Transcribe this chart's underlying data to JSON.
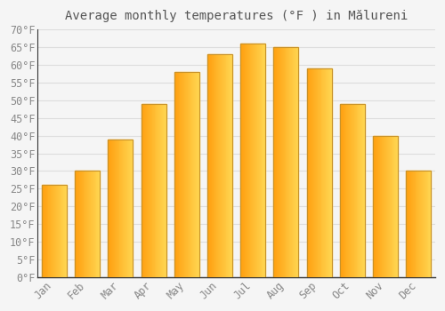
{
  "title": "Average monthly temperatures (°F ) in Mălureni",
  "months": [
    "Jan",
    "Feb",
    "Mar",
    "Apr",
    "May",
    "Jun",
    "Jul",
    "Aug",
    "Sep",
    "Oct",
    "Nov",
    "Dec"
  ],
  "values": [
    26,
    30,
    39,
    49,
    58,
    63,
    66,
    65,
    59,
    49,
    40,
    30
  ],
  "bar_color_left": "#FFA500",
  "bar_color_right": "#FFD060",
  "bar_edge_color": "#C8922A",
  "background_color": "#F5F5F5",
  "plot_bg_color": "#F5F5F5",
  "grid_color": "#DDDDDD",
  "text_color": "#888888",
  "axis_color": "#333333",
  "ylim": [
    0,
    70
  ],
  "ytick_step": 5,
  "title_fontsize": 10,
  "tick_fontsize": 8.5
}
